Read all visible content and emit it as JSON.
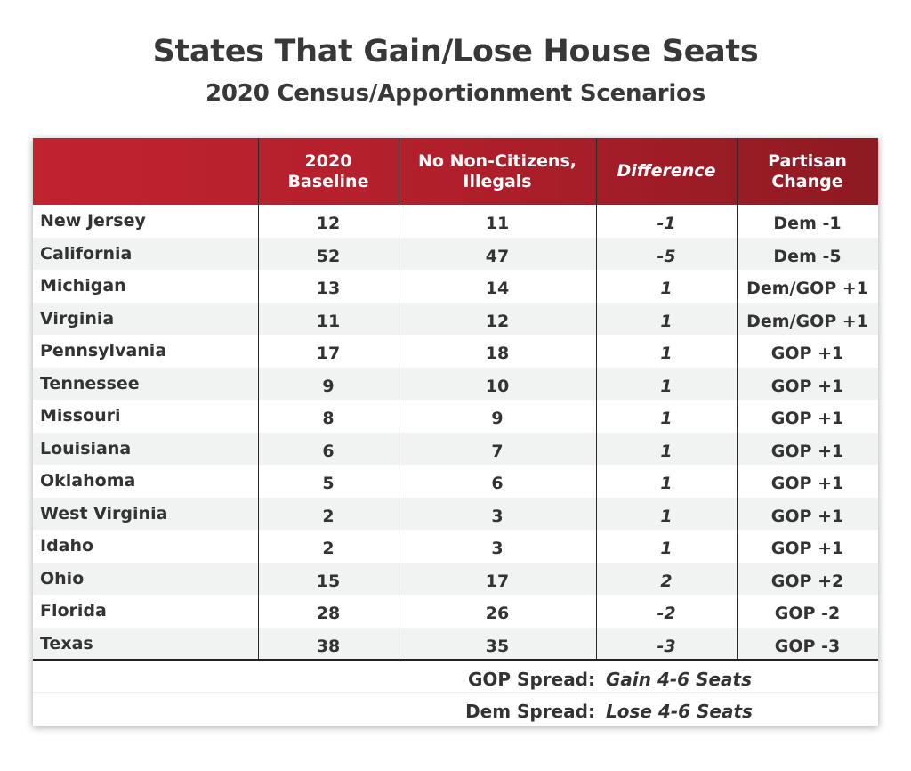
{
  "title": "States That Gain/Lose House Seats",
  "subtitle": "2020 Census/Apportionment Scenarios",
  "colors": {
    "header_start": "#c1232f",
    "header_end": "#8d1a22",
    "text": "#333333",
    "alt_row": "#f1f3f2"
  },
  "chart_data": {
    "type": "table",
    "title": "States That Gain/Lose House Seats",
    "subtitle": "2020 Census/Apportionment Scenarios",
    "columns": [
      "",
      "2020\nBaseline",
      "No Non-Citizens,\nIllegals",
      "Difference",
      "Partisan\nChange"
    ],
    "rows": [
      {
        "state": "New Jersey",
        "baseline": "12",
        "no_noncitizens": "11",
        "difference": "-1",
        "partisan": "Dem -1"
      },
      {
        "state": "California",
        "baseline": "52",
        "no_noncitizens": "47",
        "difference": "-5",
        "partisan": "Dem -5"
      },
      {
        "state": "Michigan",
        "baseline": "13",
        "no_noncitizens": "14",
        "difference": "1",
        "partisan": "Dem/GOP +1"
      },
      {
        "state": "Virginia",
        "baseline": "11",
        "no_noncitizens": "12",
        "difference": "1",
        "partisan": "Dem/GOP +1"
      },
      {
        "state": "Pennsylvania",
        "baseline": "17",
        "no_noncitizens": "18",
        "difference": "1",
        "partisan": "GOP +1"
      },
      {
        "state": "Tennessee",
        "baseline": "9",
        "no_noncitizens": "10",
        "difference": "1",
        "partisan": "GOP +1"
      },
      {
        "state": "Missouri",
        "baseline": "8",
        "no_noncitizens": "9",
        "difference": "1",
        "partisan": "GOP +1"
      },
      {
        "state": "Louisiana",
        "baseline": "6",
        "no_noncitizens": "7",
        "difference": "1",
        "partisan": "GOP +1"
      },
      {
        "state": "Oklahoma",
        "baseline": "5",
        "no_noncitizens": "6",
        "difference": "1",
        "partisan": "GOP +1"
      },
      {
        "state": "West Virginia",
        "baseline": "2",
        "no_noncitizens": "3",
        "difference": "1",
        "partisan": "GOP +1"
      },
      {
        "state": "Idaho",
        "baseline": "2",
        "no_noncitizens": "3",
        "difference": "1",
        "partisan": "GOP +1"
      },
      {
        "state": "Ohio",
        "baseline": "15",
        "no_noncitizens": "17",
        "difference": "2",
        "partisan": "GOP +2"
      },
      {
        "state": "Florida",
        "baseline": "28",
        "no_noncitizens": "26",
        "difference": "-2",
        "partisan": "GOP -2"
      },
      {
        "state": "Texas",
        "baseline": "38",
        "no_noncitizens": "35",
        "difference": "-3",
        "partisan": "GOP -3"
      }
    ],
    "footer": [
      {
        "label": "GOP Spread:",
        "value": "Gain 4-6 Seats"
      },
      {
        "label": "Dem Spread:",
        "value": "Lose 4-6 Seats"
      }
    ]
  }
}
